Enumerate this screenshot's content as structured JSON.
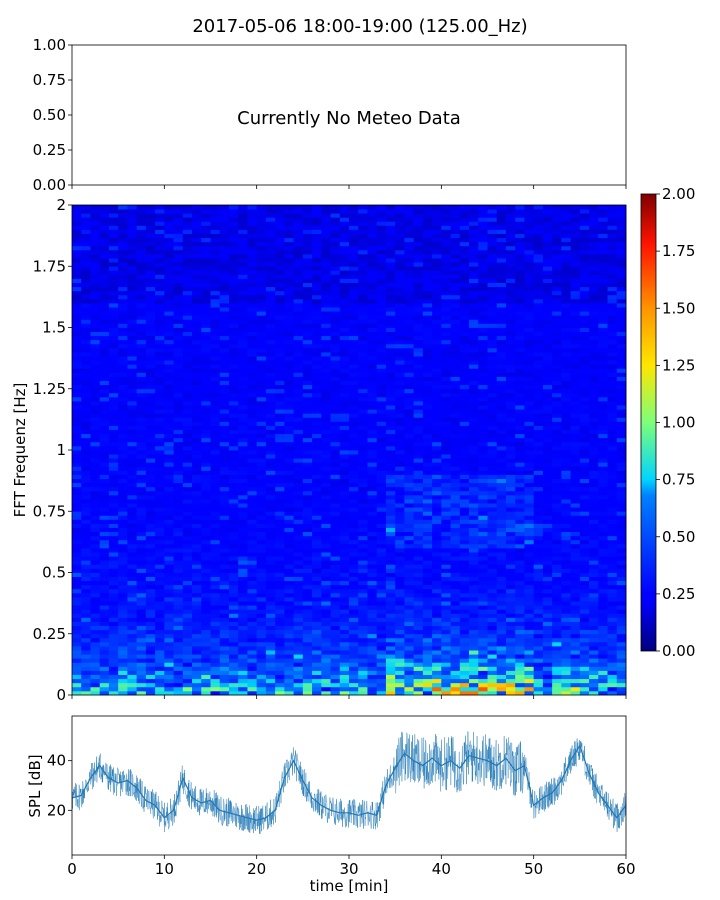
{
  "figure": {
    "title": "2017-05-06 18:00-19:00 (125.00_Hz)"
  },
  "chart_data": [
    {
      "type": "line",
      "panel": "meteo",
      "annotation": "Currently No Meteo Data",
      "ylim": [
        0,
        1
      ],
      "yticks": [
        "0.00",
        "0.25",
        "0.50",
        "0.75",
        "1.00"
      ],
      "xlim": [
        0,
        60
      ],
      "series": []
    },
    {
      "type": "heatmap",
      "panel": "spectrogram",
      "ylabel": "FFT Frequenz [Hz]",
      "ylim": [
        0,
        2
      ],
      "yticks": [
        "0",
        "0.25",
        "0.5",
        "0.75",
        "1",
        "1.25",
        "1.5",
        "1.75",
        "2"
      ],
      "xlim": [
        0,
        60
      ],
      "colorbar": {
        "colormap": "jet",
        "range": [
          0,
          2
        ],
        "ticks": [
          "0.00",
          "0.25",
          "0.50",
          "0.75",
          "1.00",
          "1.25",
          "1.50",
          "1.75",
          "2.00"
        ]
      }
    },
    {
      "type": "line",
      "panel": "spl",
      "ylabel": "SPL [dB]",
      "xlabel": "time [min]",
      "xlim": [
        0,
        60
      ],
      "ylim": [
        2,
        58
      ],
      "xticks": [
        "0",
        "10",
        "20",
        "30",
        "40",
        "50",
        "60"
      ],
      "yticks": [
        "20",
        "40"
      ],
      "color": "#1f77b4",
      "series": [
        {
          "x": [
            0,
            1,
            2,
            3,
            4,
            5,
            6,
            7,
            8,
            9,
            10,
            11,
            12,
            13,
            14,
            15,
            16,
            17,
            18,
            19,
            20,
            21,
            22,
            23,
            24,
            25,
            26,
            27,
            28,
            29,
            30,
            31,
            32,
            33,
            34,
            35,
            36,
            37,
            38,
            39,
            40,
            41,
            42,
            43,
            44,
            45,
            46,
            47,
            48,
            49,
            50,
            51,
            52,
            53,
            54,
            55,
            56,
            57,
            58,
            59,
            60
          ],
          "values": [
            25,
            26,
            33,
            38,
            33,
            31,
            32,
            29,
            24,
            22,
            17,
            20,
            33,
            25,
            23,
            24,
            20,
            19,
            18,
            17,
            16,
            17,
            20,
            33,
            40,
            32,
            25,
            22,
            20,
            19,
            19,
            18,
            19,
            18,
            30,
            37,
            43,
            40,
            38,
            41,
            38,
            40,
            37,
            42,
            41,
            40,
            38,
            41,
            36,
            38,
            22,
            25,
            27,
            32,
            40,
            46,
            35,
            27,
            22,
            17,
            22
          ]
        }
      ]
    }
  ]
}
